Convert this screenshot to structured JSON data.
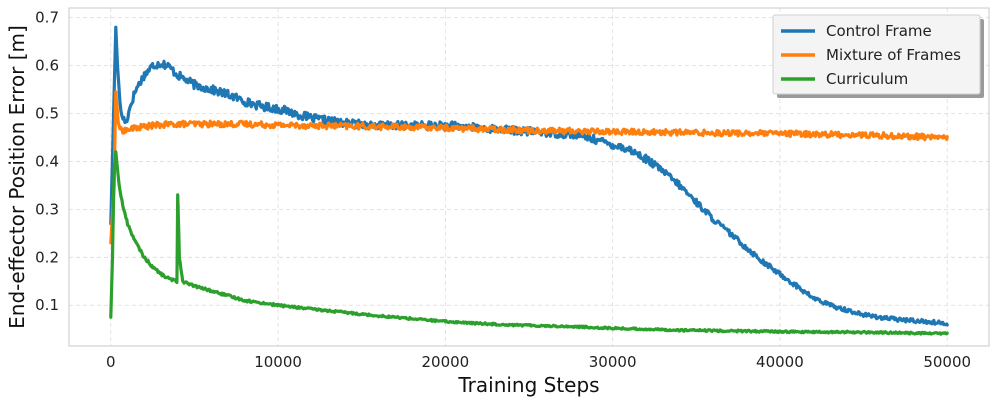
{
  "chart_data": {
    "type": "line",
    "title": "",
    "xlabel": "Training Steps",
    "ylabel": "End-effector Position Error [m]",
    "xlim": [
      -2500,
      52500
    ],
    "ylim": [
      0.015,
      0.72
    ],
    "xticks": [
      0,
      10000,
      20000,
      30000,
      40000,
      50000
    ],
    "xtick_labels": [
      "0",
      "10000",
      "20000",
      "30000",
      "40000",
      "50000"
    ],
    "yticks": [
      0.1,
      0.2,
      0.3,
      0.4,
      0.5,
      0.6,
      0.7
    ],
    "ytick_labels": [
      "0.1",
      "0.2",
      "0.3",
      "0.4",
      "0.5",
      "0.6",
      "0.7"
    ],
    "grid": true,
    "legend_position": "top-right",
    "series": [
      {
        "name": "Control Frame",
        "color": "#1f77b4",
        "x": [
          0,
          300,
          400,
          600,
          900,
          1200,
          1500,
          2000,
          2500,
          3000,
          3400,
          4000,
          5000,
          6000,
          7000,
          8000,
          9000,
          10000,
          11000,
          12000,
          14000,
          16000,
          18000,
          20000,
          22000,
          24000,
          26000,
          28000,
          29000,
          30000,
          31000,
          32000,
          33000,
          34000,
          35000,
          36000,
          37000,
          38000,
          39000,
          40000,
          41000,
          42000,
          43000,
          44000,
          45000,
          46000,
          47000,
          48000,
          49000,
          50000
        ],
        "y": [
          0.27,
          0.68,
          0.6,
          0.5,
          0.48,
          0.52,
          0.55,
          0.58,
          0.6,
          0.605,
          0.6,
          0.58,
          0.56,
          0.55,
          0.54,
          0.525,
          0.515,
          0.51,
          0.5,
          0.49,
          0.48,
          0.475,
          0.475,
          0.475,
          0.47,
          0.465,
          0.46,
          0.455,
          0.445,
          0.435,
          0.425,
          0.405,
          0.38,
          0.35,
          0.315,
          0.28,
          0.25,
          0.22,
          0.19,
          0.165,
          0.14,
          0.115,
          0.1,
          0.09,
          0.08,
          0.075,
          0.07,
          0.068,
          0.065,
          0.062
        ]
      },
      {
        "name": "Mixture of Frames",
        "color": "#ff7f0e",
        "x": [
          0,
          200,
          300,
          450,
          600,
          900,
          1500,
          2500,
          4000,
          6000,
          8000,
          10000,
          15000,
          20000,
          25000,
          30000,
          35000,
          40000,
          45000,
          50000
        ],
        "y": [
          0.23,
          0.35,
          0.545,
          0.48,
          0.465,
          0.465,
          0.47,
          0.475,
          0.478,
          0.478,
          0.478,
          0.476,
          0.473,
          0.47,
          0.465,
          0.462,
          0.46,
          0.458,
          0.455,
          0.45
        ]
      },
      {
        "name": "Curriculum",
        "color": "#2ca02c",
        "x": [
          0,
          100,
          200,
          300,
          500,
          700,
          1000,
          1500,
          2000,
          2500,
          3000,
          3500,
          3950,
          4000,
          4100,
          4300,
          4600,
          5000,
          6000,
          7000,
          8000,
          9000,
          10000,
          12000,
          14000,
          16000,
          18000,
          20000,
          22000,
          24000,
          26000,
          28000,
          30000,
          32000,
          34000,
          36000,
          38000,
          40000,
          42000,
          44000,
          46000,
          48000,
          50000
        ],
        "y": [
          0.075,
          0.2,
          0.38,
          0.42,
          0.35,
          0.31,
          0.27,
          0.23,
          0.2,
          0.18,
          0.165,
          0.155,
          0.15,
          0.33,
          0.2,
          0.15,
          0.145,
          0.14,
          0.13,
          0.12,
          0.11,
          0.105,
          0.1,
          0.092,
          0.085,
          0.078,
          0.072,
          0.066,
          0.062,
          0.059,
          0.057,
          0.055,
          0.052,
          0.05,
          0.048,
          0.047,
          0.046,
          0.045,
          0.044,
          0.044,
          0.043,
          0.042,
          0.041
        ]
      }
    ]
  }
}
